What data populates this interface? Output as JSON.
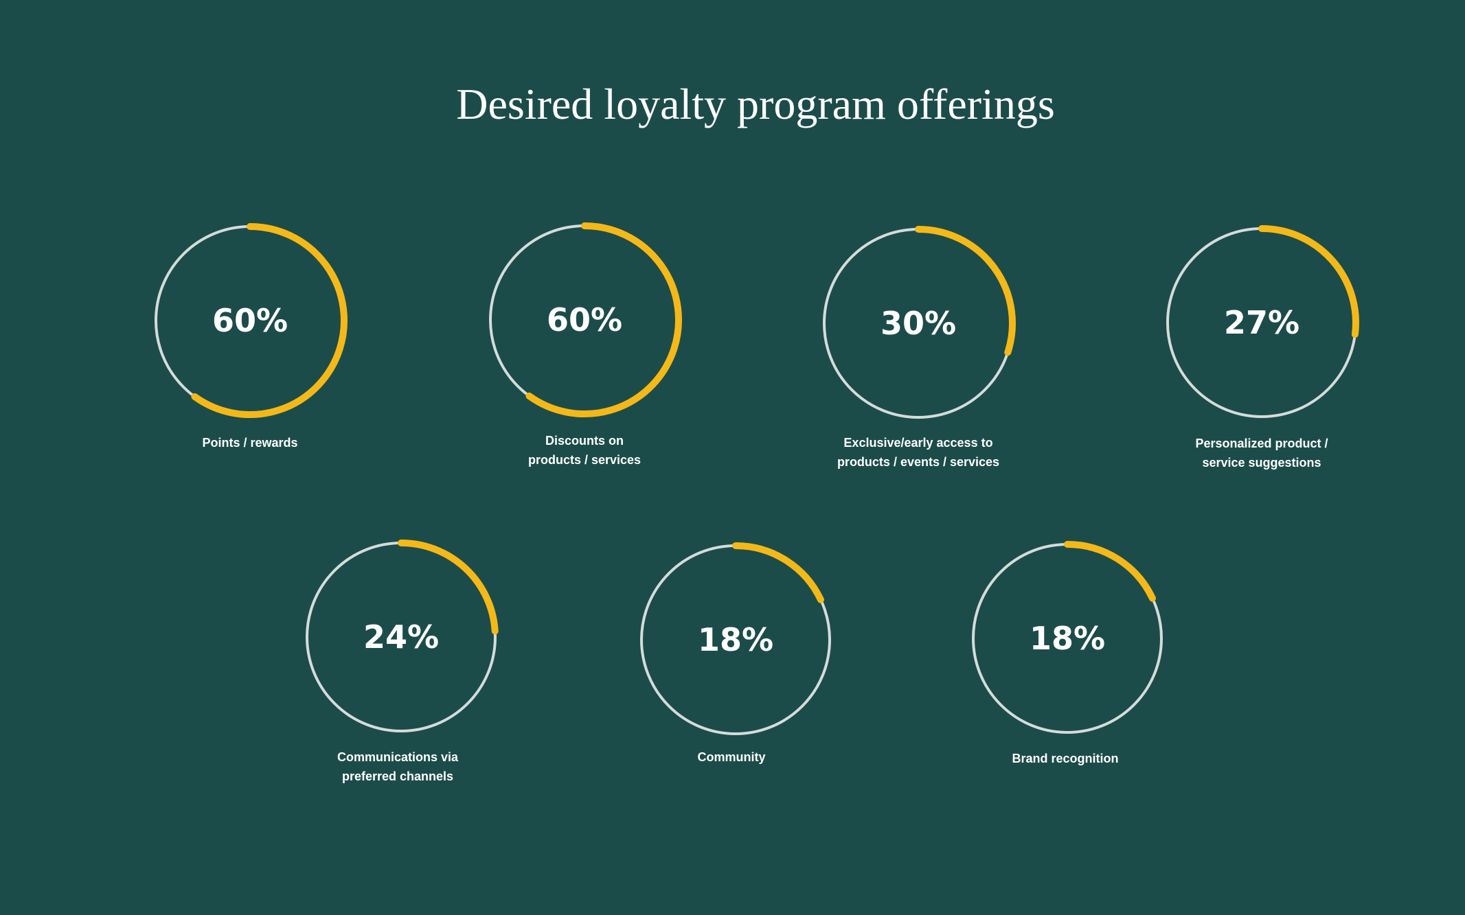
{
  "title": "Desired loyalty program offerings",
  "colors": {
    "background": "#1c4c4a",
    "accent": "#f4b918",
    "track": "#d4dcdb",
    "text": "#ffffff"
  },
  "chart_data": {
    "type": "donut",
    "title": "Desired loyalty program offerings",
    "unit": "%",
    "items": [
      {
        "value": 60,
        "label": "60%",
        "caption": [
          "Points / rewards"
        ]
      },
      {
        "value": 60,
        "label": "60%",
        "caption": [
          "Discounts on",
          "products / services"
        ]
      },
      {
        "value": 30,
        "label": "30%",
        "caption": [
          "Exclusive/early access to",
          "products / events / services"
        ]
      },
      {
        "value": 27,
        "label": "27%",
        "caption": [
          "Personalized product /",
          "service suggestions"
        ]
      },
      {
        "value": 24,
        "label": "24%",
        "caption": [
          "Communications via",
          "preferred channels"
        ]
      },
      {
        "value": 18,
        "label": "18%",
        "caption": [
          "Community"
        ]
      },
      {
        "value": 18,
        "label": "18%",
        "caption": [
          "Brand recognition"
        ]
      }
    ]
  }
}
